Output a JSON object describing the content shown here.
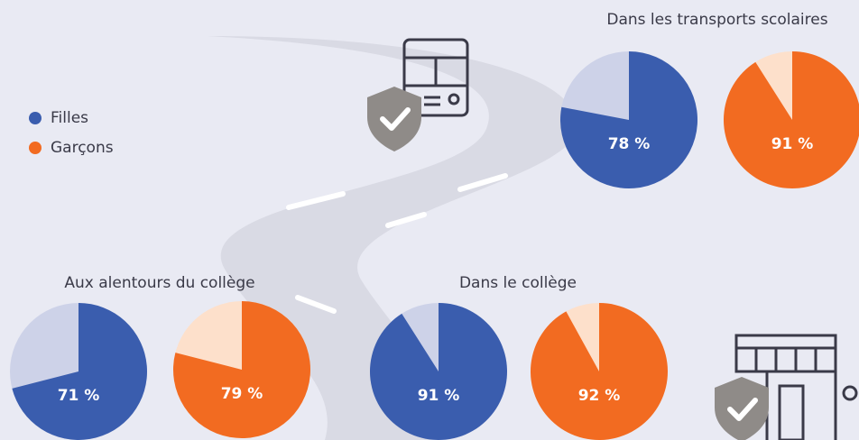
{
  "chart_data": [
    {
      "type": "pie",
      "title": "Dans les transports scolaires",
      "series": [
        {
          "name": "Filles",
          "color": "#3a5dae",
          "rest_color": "#cdd2e8",
          "values": [
            78
          ],
          "value_labels": [
            "78 %"
          ]
        },
        {
          "name": "Garçons",
          "color": "#f26b21",
          "rest_color": "#fde0cb",
          "values": [
            91
          ],
          "value_labels": [
            "91 %"
          ]
        }
      ]
    },
    {
      "type": "pie",
      "title": "Aux alentours du collège",
      "series": [
        {
          "name": "Filles",
          "color": "#3a5dae",
          "rest_color": "#cdd2e8",
          "values": [
            71
          ],
          "value_labels": [
            "71 %"
          ]
        },
        {
          "name": "Garçons",
          "color": "#f26b21",
          "rest_color": "#fde0cb",
          "values": [
            79
          ],
          "value_labels": [
            "79 %"
          ]
        }
      ]
    },
    {
      "type": "pie",
      "title": "Dans le collège",
      "series": [
        {
          "name": "Filles",
          "color": "#3a5dae",
          "rest_color": "#cdd2e8",
          "values": [
            91
          ],
          "value_labels": [
            "91 %"
          ]
        },
        {
          "name": "Garçons",
          "color": "#f26b21",
          "rest_color": "#fde0cb",
          "values": [
            92
          ],
          "value_labels": [
            "92 %"
          ]
        }
      ]
    }
  ]
}
